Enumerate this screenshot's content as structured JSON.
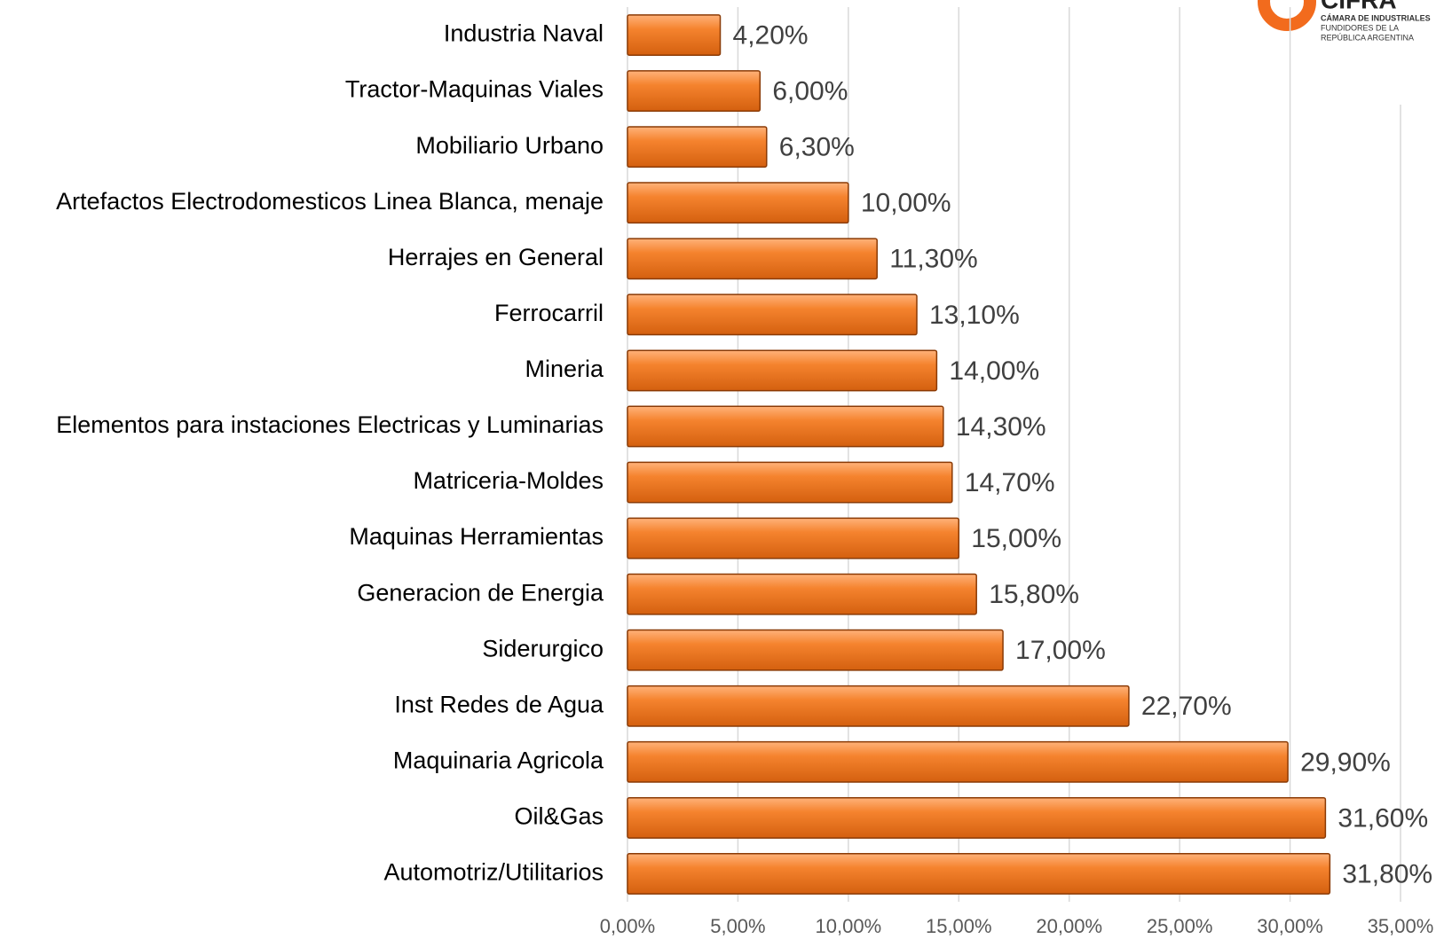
{
  "chart_data": {
    "type": "bar",
    "orientation": "horizontal",
    "categories": [
      "Industria Naval",
      "Tractor-Maquinas Viales",
      "Mobiliario Urbano",
      "Artefactos Electrodomesticos Linea Blanca, menaje",
      "Herrajes en General",
      "Ferrocarril",
      "Mineria",
      "Elementos para instaciones Electricas y Luminarias",
      "Matriceria-Moldes",
      "Maquinas Herramientas",
      "Generacion de Energia",
      "Siderurgico",
      "Inst Redes de Agua",
      "Maquinaria Agricola",
      "Oil&Gas",
      "Automotriz/Utilitarios"
    ],
    "values": [
      4.2,
      6.0,
      6.3,
      10.0,
      11.3,
      13.1,
      14.0,
      14.3,
      14.7,
      15.0,
      15.8,
      17.0,
      22.7,
      29.9,
      31.6,
      31.8
    ],
    "value_labels": [
      "4,20%",
      "6,00%",
      "6,30%",
      "10,00%",
      "11,30%",
      "13,10%",
      "14,00%",
      "14,30%",
      "14,70%",
      "15,00%",
      "15,80%",
      "17,00%",
      "22,70%",
      "29,90%",
      "31,60%",
      "31,80%"
    ],
    "color": "#f07a22",
    "xlim": [
      0,
      35
    ],
    "xticks": [
      {
        "value": 0,
        "label": "0,00%"
      },
      {
        "value": 5,
        "label": "5,00%"
      },
      {
        "value": 10,
        "label": "10,00%"
      },
      {
        "value": 15,
        "label": "15,00%"
      },
      {
        "value": 20,
        "label": "20,00%"
      },
      {
        "value": 25,
        "label": "25,00%"
      },
      {
        "value": 30,
        "label": "30,00%"
      },
      {
        "value": 35,
        "label": "35,00%"
      }
    ],
    "grid": true
  },
  "logo": {
    "name": "CIFRA",
    "lines": [
      "CÁMARA DE INDUSTRIALES",
      "FUNDIDORES DE LA",
      "REPÚBLICA ARGENTINA"
    ]
  }
}
